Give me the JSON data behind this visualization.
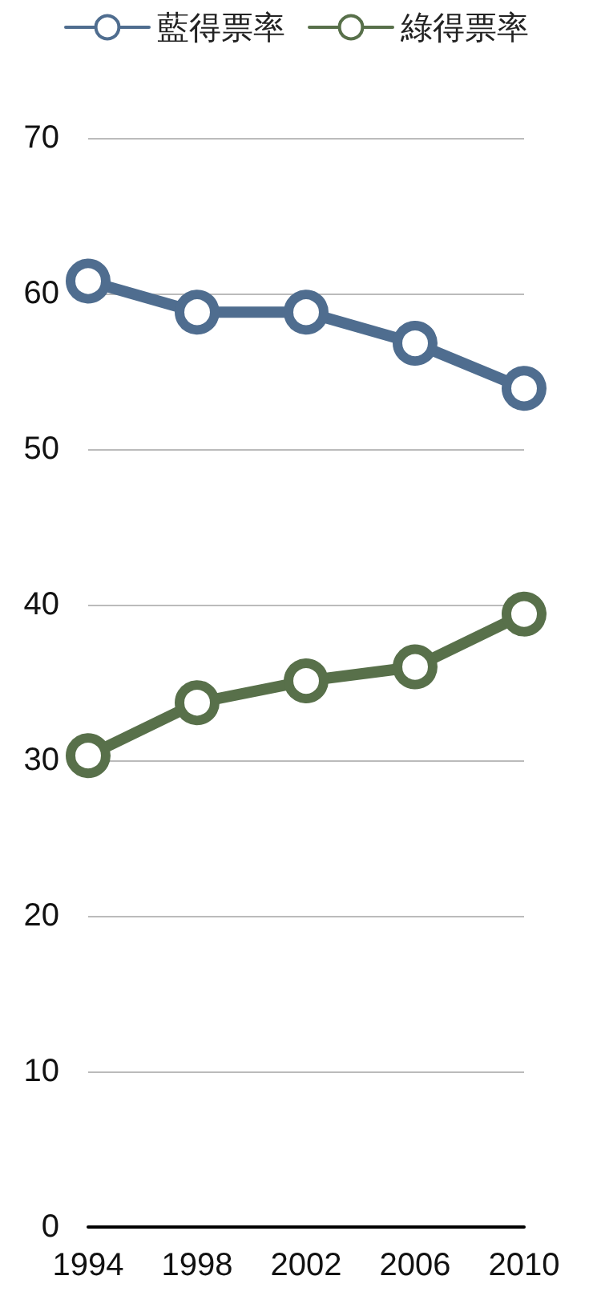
{
  "chart_data": {
    "type": "line",
    "categories": [
      "1994",
      "1998",
      "2002",
      "2006",
      "2010"
    ],
    "series": [
      {
        "name": "藍得票率",
        "color": "#4f6d8f",
        "values": [
          60.8,
          58.8,
          58.8,
          56.8,
          53.9
        ]
      },
      {
        "name": "綠得票率",
        "color": "#58704a",
        "values": [
          30.3,
          33.7,
          35.1,
          36.0,
          39.4
        ]
      }
    ],
    "ylim": [
      0,
      70
    ],
    "yticks": [
      0,
      10,
      20,
      30,
      40,
      50,
      60,
      70
    ],
    "grid": "y",
    "legend": "top",
    "marker": "circle",
    "line_style": "solid"
  }
}
